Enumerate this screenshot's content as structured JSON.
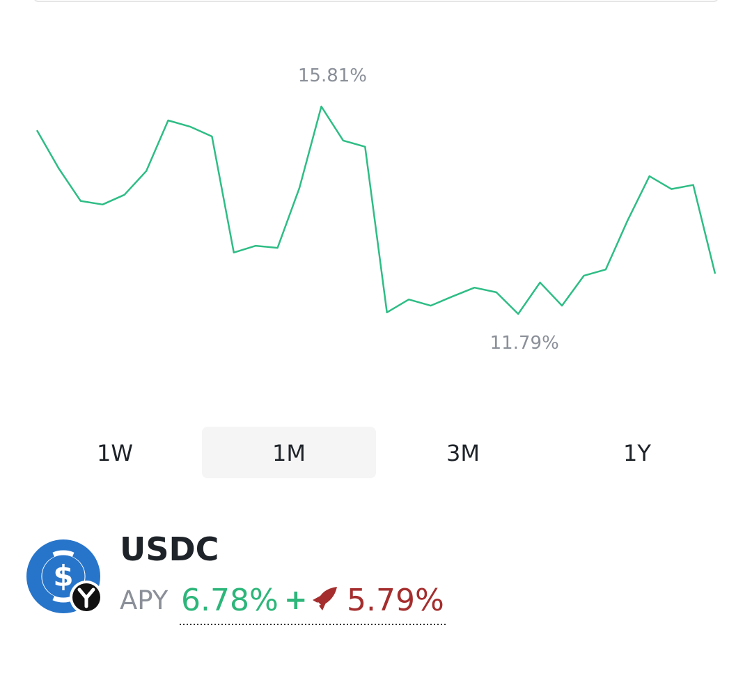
{
  "chart_data": {
    "type": "line",
    "color": "#2ebd85",
    "values": [
      15.35,
      14.61,
      13.98,
      13.91,
      14.1,
      14.56,
      15.54,
      15.42,
      15.23,
      12.98,
      13.11,
      13.07,
      14.23,
      15.81,
      15.15,
      15.03,
      11.82,
      12.07,
      11.95,
      12.13,
      12.3,
      12.21,
      11.79,
      12.4,
      11.95,
      12.53,
      12.65,
      13.6,
      14.46,
      14.21,
      14.29,
      12.57
    ],
    "max_label": "15.81%",
    "min_label": "11.79%"
  },
  "ranges": [
    "1W",
    "1M",
    "3M",
    "1Y"
  ],
  "selected_range": "1M",
  "asset": {
    "name": "USDC",
    "apy_label": "APY",
    "base_apy": "6.78%",
    "plus": "+",
    "bonus_apy": "5.79%"
  }
}
